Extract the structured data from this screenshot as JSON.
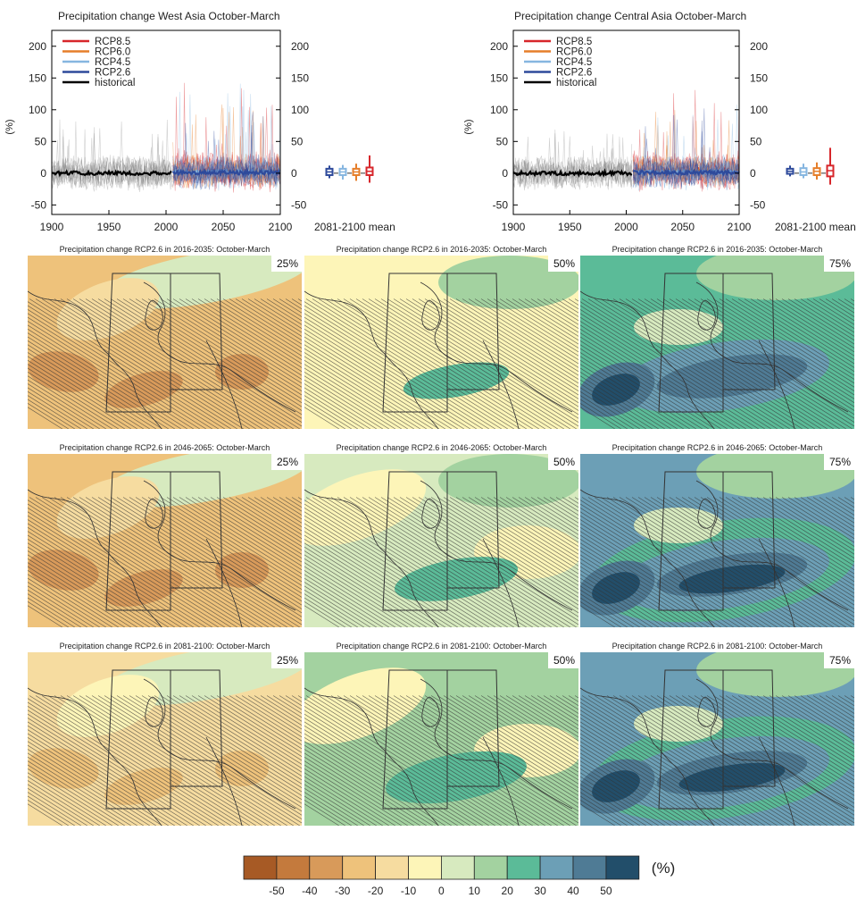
{
  "timeseries_panels": [
    {
      "title": "Precipitation change West Asia October-March",
      "ylabel": "(%)",
      "mean_label": "2081-2100 mean"
    },
    {
      "title": "Precipitation change Central Asia October-March",
      "ylabel": "(%)",
      "mean_label": "2081-2100 mean"
    }
  ],
  "map_rows": [
    {
      "period": "2016-2035",
      "titles": [
        "Precipitation change RCP2.6 in 2016-2035: October-March",
        "Precipitation change RCP2.6 in 2016-2035: October-March",
        "Precipitation change RCP2.6 in 2016-2035: October-March"
      ]
    },
    {
      "period": "2046-2065",
      "titles": [
        "Precipitation change RCP2.6 in 2046-2065: October-March",
        "Precipitation change RCP2.6 in 2046-2065: October-March",
        "Precipitation change RCP2.6 in 2046-2065: October-March"
      ]
    },
    {
      "period": "2081-2100",
      "titles": [
        "Precipitation change RCP2.6 in 2081-2100: October-March",
        "Precipitation change RCP2.6 in 2081-2100: October-March",
        "Precipitation change RCP2.6 in 2081-2100: October-March"
      ]
    }
  ],
  "percentile_labels": [
    "25%",
    "50%",
    "75%"
  ],
  "colorbar": {
    "unit": "(%)",
    "tick_labels": [
      "-50",
      "-40",
      "-30",
      "-20",
      "-10",
      "0",
      "10",
      "20",
      "30",
      "40",
      "50"
    ],
    "colors": [
      "#a75a25",
      "#c47a3d",
      "#d89a5a",
      "#eec27b",
      "#f6dca0",
      "#fdf5b8",
      "#d7eabf",
      "#a3d2a0",
      "#5bbb98",
      "#6c9fb6",
      "#4f7b95",
      "#224e6a"
    ]
  },
  "chart_data": [
    {
      "type": "line",
      "title": "Precipitation change West Asia October-March",
      "ylabel": "(%)",
      "xlim": [
        1900,
        2100
      ],
      "ylim": [
        -65,
        225
      ],
      "x_ticks": [
        1900,
        1950,
        2000,
        2050,
        2100
      ],
      "y_ticks": [
        -50,
        0,
        50,
        100,
        150,
        200
      ],
      "legend_position": "top-left",
      "series": [
        {
          "name": "RCP8.5",
          "color": "#d7262b",
          "x_range": [
            2006,
            2100
          ],
          "mean": 3,
          "spread": 25,
          "max": 150
        },
        {
          "name": "RCP6.0",
          "color": "#e67e2a",
          "x_range": [
            2006,
            2100
          ],
          "mean": 2,
          "spread": 20,
          "max": 110
        },
        {
          "name": "RCP4.5",
          "color": "#86b6e0",
          "x_range": [
            2006,
            2100
          ],
          "mean": 2,
          "spread": 22,
          "max": 140
        },
        {
          "name": "RCP2.6",
          "color": "#2e4a9b",
          "x_range": [
            2006,
            2100
          ],
          "mean": 1,
          "spread": 20,
          "max": 110
        },
        {
          "name": "historical",
          "color": "#000000",
          "x_range": [
            1900,
            2005
          ],
          "mean": 0,
          "spread": 22,
          "max": 85
        }
      ],
      "mean_boxes": [
        {
          "name": "RCP2.6",
          "color": "#2e4a9b",
          "median": 2,
          "q1": -3,
          "q3": 7,
          "min": -8,
          "max": 12
        },
        {
          "name": "RCP4.5",
          "color": "#86b6e0",
          "median": 2,
          "q1": -3,
          "q3": 7,
          "min": -10,
          "max": 13
        },
        {
          "name": "RCP6.0",
          "color": "#e67e2a",
          "median": 2,
          "q1": -3,
          "q3": 7,
          "min": -12,
          "max": 15
        },
        {
          "name": "RCP8.5",
          "color": "#d7262b",
          "median": 3,
          "q1": -3,
          "q3": 9,
          "min": -15,
          "max": 28
        }
      ]
    },
    {
      "type": "line",
      "title": "Precipitation change Central Asia October-March",
      "ylabel": "(%)",
      "xlim": [
        1900,
        2100
      ],
      "ylim": [
        -65,
        225
      ],
      "x_ticks": [
        1900,
        1950,
        2000,
        2050,
        2100
      ],
      "y_ticks": [
        -50,
        0,
        50,
        100,
        150,
        200
      ],
      "legend_position": "top-left",
      "series": [
        {
          "name": "RCP8.5",
          "color": "#d7262b",
          "x_range": [
            2006,
            2100
          ],
          "mean": 4,
          "spread": 25,
          "max": 145
        },
        {
          "name": "RCP6.0",
          "color": "#e67e2a",
          "x_range": [
            2006,
            2100
          ],
          "mean": 3,
          "spread": 20,
          "max": 105
        },
        {
          "name": "RCP4.5",
          "color": "#86b6e0",
          "x_range": [
            2006,
            2100
          ],
          "mean": 2,
          "spread": 22,
          "max": 120
        },
        {
          "name": "RCP2.6",
          "color": "#2e4a9b",
          "x_range": [
            2006,
            2100
          ],
          "mean": 1,
          "spread": 20,
          "max": 105
        },
        {
          "name": "historical",
          "color": "#000000",
          "x_range": [
            1900,
            2005
          ],
          "mean": 0,
          "spread": 20,
          "max": 70
        }
      ],
      "mean_boxes": [
        {
          "name": "RCP2.6",
          "color": "#2e4a9b",
          "median": 3,
          "q1": -1,
          "q3": 7,
          "min": -5,
          "max": 12
        },
        {
          "name": "RCP4.5",
          "color": "#86b6e0",
          "median": 2,
          "q1": -3,
          "q3": 8,
          "min": -8,
          "max": 15
        },
        {
          "name": "RCP6.0",
          "color": "#e67e2a",
          "median": 3,
          "q1": -3,
          "q3": 8,
          "min": -10,
          "max": 17
        },
        {
          "name": "RCP8.5",
          "color": "#d7262b",
          "median": 4,
          "q1": -5,
          "q3": 12,
          "min": -18,
          "max": 40
        }
      ]
    },
    {
      "type": "heatmap",
      "description_note": "",
      "rows": [
        "2016-2035",
        "2046-2065",
        "2081-2100"
      ],
      "columns": [
        "25%",
        "50%",
        "75%"
      ],
      "dominant_class_index": [
        [
          3,
          5,
          8
        ],
        [
          3,
          6,
          9
        ],
        [
          4,
          7,
          9
        ]
      ]
    }
  ]
}
